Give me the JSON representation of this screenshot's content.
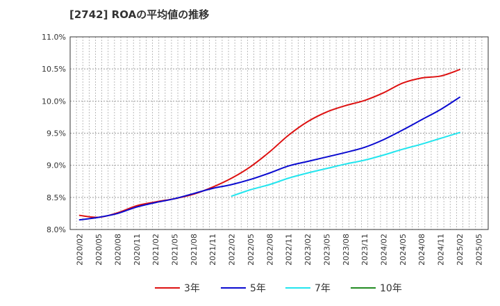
{
  "chart_data": {
    "type": "line",
    "title": "[2742]  ROAの平均値の推移",
    "xlabel": "",
    "ylabel": "",
    "ylim": [
      8.0,
      11.0
    ],
    "y_ticks": [
      "8.0%",
      "8.5%",
      "9.0%",
      "9.5%",
      "10.0%",
      "10.5%",
      "11.0%"
    ],
    "x_ticks": [
      "2020/02",
      "2020/05",
      "2020/08",
      "2020/11",
      "2021/02",
      "2021/05",
      "2021/08",
      "2021/11",
      "2022/02",
      "2022/05",
      "2022/08",
      "2022/11",
      "2023/02",
      "2023/05",
      "2023/08",
      "2023/11",
      "2024/02",
      "2024/05",
      "2024/08",
      "2024/11",
      "2025/02",
      "2025/05"
    ],
    "grid": true,
    "legend_position": "bottom",
    "series": [
      {
        "name": "3年",
        "color": "#dd1111",
        "points": [
          [
            "2020/02",
            8.22
          ],
          [
            "2020/05",
            8.19
          ],
          [
            "2020/08",
            8.26
          ],
          [
            "2020/11",
            8.37
          ],
          [
            "2021/02",
            8.43
          ],
          [
            "2021/05",
            8.48
          ],
          [
            "2021/08",
            8.55
          ],
          [
            "2021/11",
            8.66
          ],
          [
            "2022/02",
            8.8
          ],
          [
            "2022/05",
            8.98
          ],
          [
            "2022/08",
            9.21
          ],
          [
            "2022/11",
            9.47
          ],
          [
            "2023/02",
            9.68
          ],
          [
            "2023/05",
            9.83
          ],
          [
            "2023/08",
            9.93
          ],
          [
            "2023/11",
            10.01
          ],
          [
            "2024/02",
            10.13
          ],
          [
            "2024/05",
            10.28
          ],
          [
            "2024/08",
            10.36
          ],
          [
            "2024/11",
            10.39
          ],
          [
            "2025/02",
            10.49
          ]
        ]
      },
      {
        "name": "5年",
        "color": "#0a0ad0",
        "points": [
          [
            "2020/02",
            8.15
          ],
          [
            "2020/05",
            8.19
          ],
          [
            "2020/08",
            8.25
          ],
          [
            "2020/11",
            8.35
          ],
          [
            "2021/02",
            8.42
          ],
          [
            "2021/05",
            8.48
          ],
          [
            "2021/08",
            8.56
          ],
          [
            "2021/11",
            8.64
          ],
          [
            "2022/02",
            8.7
          ],
          [
            "2022/05",
            8.78
          ],
          [
            "2022/08",
            8.88
          ],
          [
            "2022/11",
            8.99
          ],
          [
            "2023/02",
            9.06
          ],
          [
            "2023/05",
            9.13
          ],
          [
            "2023/08",
            9.2
          ],
          [
            "2023/11",
            9.28
          ],
          [
            "2024/02",
            9.4
          ],
          [
            "2024/05",
            9.55
          ],
          [
            "2024/08",
            9.71
          ],
          [
            "2024/11",
            9.87
          ],
          [
            "2025/02",
            10.06
          ]
        ]
      },
      {
        "name": "7年",
        "color": "#22e5ee",
        "points": [
          [
            "2022/02",
            8.52
          ],
          [
            "2022/05",
            8.62
          ],
          [
            "2022/08",
            8.7
          ],
          [
            "2022/11",
            8.8
          ],
          [
            "2023/02",
            8.88
          ],
          [
            "2023/05",
            8.95
          ],
          [
            "2023/08",
            9.02
          ],
          [
            "2023/11",
            9.08
          ],
          [
            "2024/02",
            9.16
          ],
          [
            "2024/05",
            9.25
          ],
          [
            "2024/08",
            9.33
          ],
          [
            "2024/11",
            9.42
          ],
          [
            "2025/02",
            9.51
          ]
        ]
      },
      {
        "name": "10年",
        "color": "#228b22",
        "points": []
      }
    ]
  }
}
